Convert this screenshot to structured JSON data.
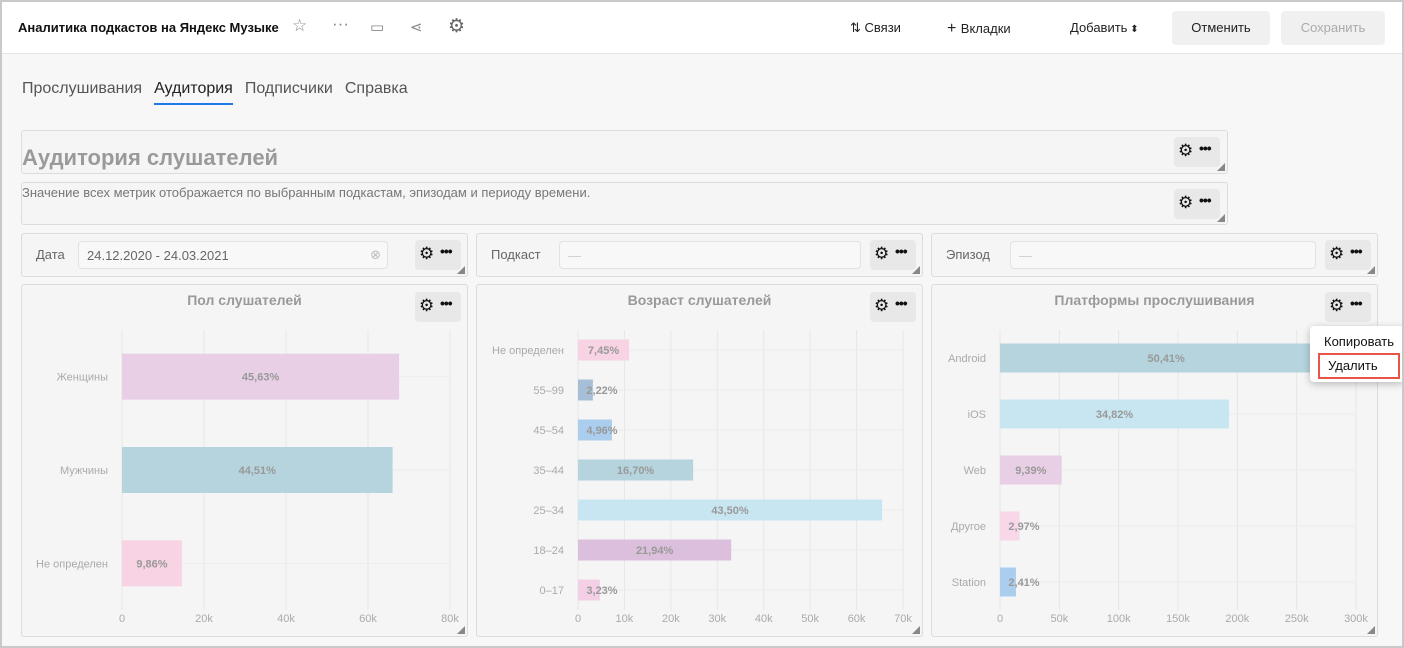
{
  "header": {
    "title": "Аналитика подкастов на Яндекс Музыке",
    "icons": [
      "star-icon",
      "more-icon",
      "folder-icon",
      "share-icon",
      "gear-icon"
    ],
    "links_label": "Связи",
    "tabs_label": "Вкладки",
    "add_label": "Добавить",
    "cancel_label": "Отменить",
    "save_label": "Сохранить"
  },
  "tabs": [
    {
      "label": "Прослушивания"
    },
    {
      "label": "Аудитория",
      "active": true
    },
    {
      "label": "Подписчики"
    },
    {
      "label": "Справка"
    }
  ],
  "heading": "Аудитория слушателей",
  "description": "Значение всех метрик отображается по выбранным подкастам, эпизодам и периоду времени.",
  "filters": [
    {
      "label": "Дата",
      "value": "24.12.2020 - 24.03.2021"
    },
    {
      "label": "Подкаст",
      "value": "—"
    },
    {
      "label": "Эпизод",
      "value": "—"
    }
  ],
  "context_menu": {
    "items": [
      "Копировать",
      "Удалить"
    ],
    "highlighted": "Удалить"
  },
  "chart_data": [
    {
      "type": "bar",
      "orientation": "horizontal",
      "title": "Пол слушателей",
      "categories": [
        "Женщины",
        "Мужчины",
        "Не определен"
      ],
      "values": [
        67600,
        66000,
        14600
      ],
      "labels": [
        "45,63%",
        "44,51%",
        "9,86%"
      ],
      "colors": [
        "#e9cfe6",
        "#b5d4de",
        "#f8d3e4"
      ],
      "xlim": [
        0,
        80000
      ],
      "xticks": [
        "0",
        "20k",
        "40k",
        "60k",
        "80k"
      ],
      "grid": true
    },
    {
      "type": "bar",
      "orientation": "horizontal",
      "title": "Возраст слушателей",
      "categories": [
        "Не определен",
        "55–99",
        "45–54",
        "35–44",
        "25–34",
        "18–24",
        "0–17"
      ],
      "values": [
        11000,
        3200,
        7300,
        24800,
        65500,
        33000,
        4700
      ],
      "labels": [
        "7,45%",
        "2,22%",
        "4,96%",
        "16,70%",
        "43,50%",
        "21,94%",
        "3,23%"
      ],
      "colors": [
        "#f8d3e4",
        "#a6bfd6",
        "#abcdee",
        "#b5d4de",
        "#c8e6f1",
        "#dcbfdc",
        "#f3d0e6"
      ],
      "xlim": [
        0,
        70000
      ],
      "xticks": [
        "0",
        "10k",
        "20k",
        "30k",
        "40k",
        "50k",
        "60k",
        "70k"
      ],
      "grid": true
    },
    {
      "type": "bar",
      "orientation": "horizontal",
      "title": "Платформы прослушивания",
      "categories": [
        "Android",
        "iOS",
        "Web",
        "Другое",
        "Station"
      ],
      "values": [
        280000,
        193000,
        52000,
        16500,
        13400
      ],
      "labels": [
        "50,41%",
        "34,82%",
        "9,39%",
        "2,97%",
        "2,41%"
      ],
      "colors": [
        "#b5d4de",
        "#c8e6f1",
        "#e9cfe6",
        "#f8d8e8",
        "#abcdee"
      ],
      "xlim": [
        0,
        300000
      ],
      "xticks": [
        "0",
        "50k",
        "100k",
        "150k",
        "200k",
        "250k",
        "300k"
      ],
      "grid": true
    }
  ]
}
